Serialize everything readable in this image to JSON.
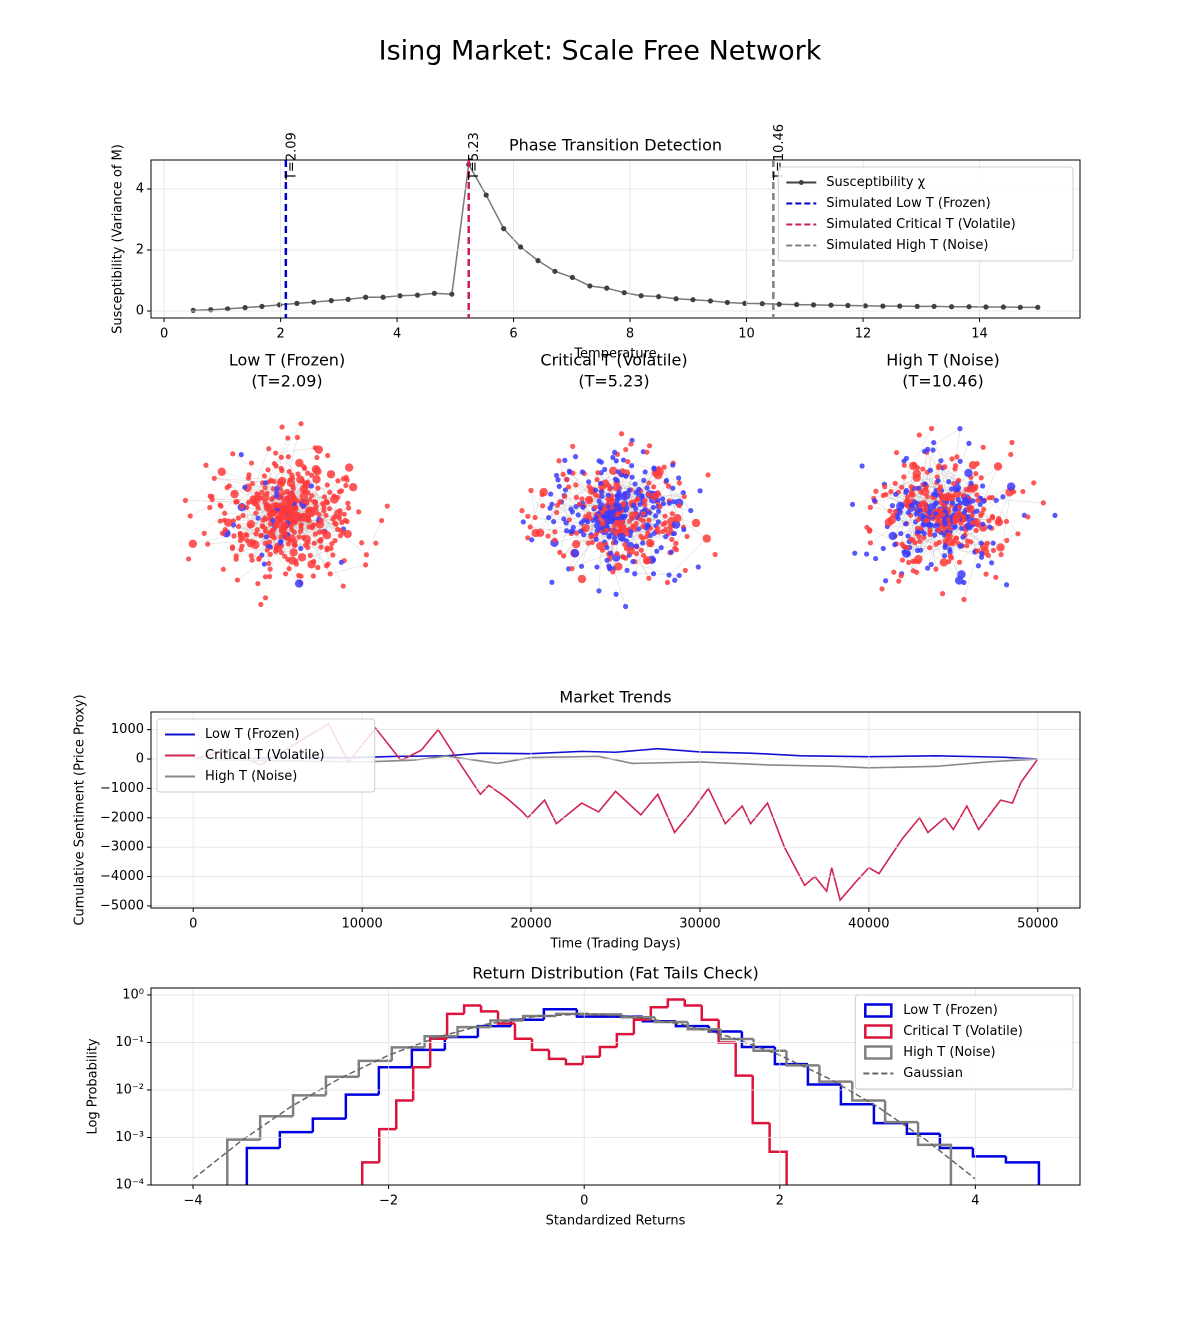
{
  "title": "Ising Market: Scale Free Network",
  "chart_data": [
    {
      "type": "line",
      "title": "Phase Transition Detection",
      "xlabel": "Temperature",
      "ylabel": "Susceptibility (Variance of M)",
      "xlim": [
        -0.225,
        15.725
      ],
      "ylim": [
        -0.23,
        4.95
      ],
      "xticks": [
        0,
        2,
        4,
        6,
        8,
        10,
        12,
        14
      ],
      "yticks": [
        0,
        2,
        4
      ],
      "grid": true,
      "legend": "upper right",
      "x": [
        0.5,
        0.8,
        1.09,
        1.39,
        1.68,
        1.98,
        2.28,
        2.57,
        2.87,
        3.16,
        3.46,
        3.76,
        4.05,
        4.35,
        4.64,
        4.94,
        5.23,
        5.53,
        5.83,
        6.12,
        6.42,
        6.71,
        7.01,
        7.31,
        7.6,
        7.9,
        8.19,
        8.49,
        8.79,
        9.08,
        9.38,
        9.67,
        9.97,
        10.27,
        10.56,
        10.86,
        11.15,
        11.45,
        11.74,
        12.04,
        12.34,
        12.63,
        12.93,
        13.22,
        13.52,
        13.82,
        14.11,
        14.41,
        14.7,
        15.0
      ],
      "series": [
        {
          "name": "Susceptibility χ",
          "color": "#404040",
          "values": [
            0.02,
            0.04,
            0.07,
            0.11,
            0.15,
            0.2,
            0.25,
            0.29,
            0.34,
            0.38,
            0.45,
            0.45,
            0.5,
            0.52,
            0.58,
            0.55,
            4.8,
            3.8,
            2.7,
            2.1,
            1.65,
            1.3,
            1.1,
            0.82,
            0.75,
            0.6,
            0.5,
            0.47,
            0.4,
            0.37,
            0.33,
            0.28,
            0.25,
            0.24,
            0.22,
            0.21,
            0.2,
            0.19,
            0.18,
            0.17,
            0.16,
            0.16,
            0.15,
            0.15,
            0.14,
            0.14,
            0.13,
            0.13,
            0.12,
            0.12
          ]
        }
      ],
      "vlines": [
        {
          "x": 2.09,
          "label": "T=2.09",
          "name": "Simulated Low T (Frozen)",
          "color": "#0000cc"
        },
        {
          "x": 5.23,
          "label": "T=5.23",
          "name": "Simulated Critical T (Volatile)",
          "color": "#cc1f4e"
        },
        {
          "x": 10.46,
          "label": "T=10.46",
          "name": "Simulated High T (Noise)",
          "color": "#808080"
        }
      ]
    },
    {
      "type": "network",
      "colors": [
        "#ff3b3b",
        "#3b3bff"
      ],
      "panels": [
        {
          "title": "Low T (Frozen)",
          "subtitle": "(T=2.09)"
        },
        {
          "title": "Critical T (Volatile)",
          "subtitle": "(T=5.23)"
        },
        {
          "title": "High T (Noise)",
          "subtitle": "(T=10.46)"
        }
      ]
    },
    {
      "type": "line",
      "title": "Market Trends",
      "xlabel": "Time (Trading Days)",
      "ylabel": "Cumulative Sentiment (Price Proxy)",
      "xlim": [
        -2500,
        52500
      ],
      "ylim": [
        -5070,
        1600
      ],
      "xticks": [
        0,
        10000,
        20000,
        30000,
        40000,
        50000
      ],
      "yticks": [
        {
          "value": -5000,
          "label": "−5000"
        },
        {
          "value": -4000,
          "label": "−4000"
        },
        {
          "value": -3000,
          "label": "−3000"
        },
        {
          "value": -2000,
          "label": "−2000"
        },
        {
          "value": -1000,
          "label": "−1000"
        },
        0,
        1000
      ],
      "grid": true,
      "legend": "upper left",
      "series": [
        {
          "name": "Low T (Frozen)",
          "color": "#1010d0",
          "x": [
            0,
            3000,
            6000,
            9000,
            12000,
            15000,
            17000,
            20000,
            23000,
            25000,
            27500,
            30000,
            33000,
            36000,
            40000,
            44000,
            48000,
            50000
          ],
          "values": [
            0,
            20,
            60,
            40,
            90,
            110,
            200,
            180,
            260,
            230,
            350,
            240,
            200,
            110,
            80,
            110,
            60,
            0
          ]
        },
        {
          "name": "Critical T (Volatile)",
          "color": "#d02550",
          "x": [
            0,
            2000,
            4000,
            6000,
            8000,
            9200,
            10800,
            12300,
            13500,
            14500,
            15500,
            17000,
            17500,
            18500,
            19500,
            19800,
            20800,
            21500,
            23000,
            24000,
            25000,
            26500,
            27500,
            28500,
            29500,
            30500,
            31500,
            32500,
            33000,
            34000,
            35000,
            36200,
            36800,
            37500,
            37800,
            38300,
            39200,
            40000,
            40600,
            42000,
            43000,
            43500,
            44500,
            45000,
            45800,
            46500,
            47800,
            48500,
            49000,
            50000
          ],
          "values": [
            0,
            300,
            -200,
            500,
            1200,
            -100,
            1050,
            -50,
            300,
            1000,
            100,
            -1200,
            -900,
            -1300,
            -1800,
            -2000,
            -1400,
            -2200,
            -1500,
            -1800,
            -1100,
            -1900,
            -1200,
            -2500,
            -1800,
            -1000,
            -2200,
            -1600,
            -2200,
            -1500,
            -3000,
            -4300,
            -4000,
            -4500,
            -3700,
            -4800,
            -4200,
            -3700,
            -3900,
            -2700,
            -2000,
            -2500,
            -2000,
            -2400,
            -1600,
            -2400,
            -1400,
            -1500,
            -800,
            0
          ]
        },
        {
          "name": "High T (Noise)",
          "color": "#888888",
          "x": [
            0,
            5000,
            10000,
            13000,
            15000,
            18000,
            20000,
            24000,
            26000,
            30000,
            34000,
            38000,
            40000,
            44000,
            47000,
            50000
          ],
          "values": [
            0,
            -60,
            -100,
            -40,
            100,
            -150,
            50,
            90,
            -150,
            -100,
            -200,
            -250,
            -300,
            -250,
            -100,
            0
          ]
        }
      ]
    },
    {
      "type": "histogram",
      "title": "Return Distribution (Fat Tails Check)",
      "xlabel": "Standardized Returns",
      "ylabel": "Log Probability",
      "xlim": [
        -4.43,
        5.07
      ],
      "ylim": [
        0.0001,
        1.4
      ],
      "ylog": true,
      "xticks": [
        {
          "value": -4,
          "label": "−4"
        },
        {
          "value": -2,
          "label": "−2"
        },
        0,
        2,
        4
      ],
      "yticks": [
        {
          "value": 0.0001,
          "label": "10⁻⁴"
        },
        {
          "value": 0.001,
          "label": "10⁻³"
        },
        {
          "value": 0.01,
          "label": "10⁻²"
        },
        {
          "value": 0.1,
          "label": "10⁻¹"
        },
        {
          "value": 1,
          "label": "10⁰"
        }
      ],
      "grid": true,
      "legend": "upper right",
      "series": [
        {
          "name": "Low T (Frozen)",
          "color": "#0000e0",
          "bins": [
            -3.45,
            -3.1125,
            -2.775,
            -2.4375,
            -2.1,
            -1.7625,
            -1.425,
            -1.0875,
            -0.75,
            -0.4125,
            -0.075,
            0.2625,
            0.6,
            0.9375,
            1.275,
            1.6125,
            1.95,
            2.2875,
            2.625,
            2.9625,
            3.3,
            3.6375,
            3.975,
            4.3125,
            4.65
          ],
          "values": [
            0.0006,
            0.0013,
            0.0025,
            0.008,
            0.03,
            0.07,
            0.13,
            0.22,
            0.3,
            0.5,
            0.35,
            0.35,
            0.28,
            0.22,
            0.17,
            0.08,
            0.035,
            0.013,
            0.005,
            0.002,
            0.0012,
            0.0006,
            0.0004,
            0.0003
          ]
        },
        {
          "name": "Critical T (Volatile)",
          "color": "#dc143c",
          "bins": [
            -2.27,
            -2.096,
            -1.922,
            -1.749,
            -1.575,
            -1.402,
            -1.228,
            -1.055,
            -0.881,
            -0.708,
            -0.534,
            -0.36,
            -0.187,
            -0.013,
            0.16,
            0.334,
            0.508,
            0.681,
            0.855,
            1.028,
            1.202,
            1.375,
            1.549,
            1.723,
            1.896,
            2.07
          ],
          "values": [
            0.0003,
            0.0015,
            0.006,
            0.03,
            0.12,
            0.4,
            0.6,
            0.45,
            0.25,
            0.12,
            0.07,
            0.045,
            0.035,
            0.05,
            0.08,
            0.15,
            0.3,
            0.55,
            0.8,
            0.6,
            0.3,
            0.1,
            0.02,
            0.002,
            0.0005
          ]
        },
        {
          "name": "High T (Noise)",
          "color": "#808080",
          "bins": [
            -3.65,
            -3.314,
            -2.977,
            -2.641,
            -2.305,
            -1.968,
            -1.632,
            -1.295,
            -0.959,
            -0.623,
            -0.286,
            0.05,
            0.386,
            0.723,
            1.059,
            1.395,
            1.732,
            2.068,
            2.405,
            2.741,
            3.077,
            3.414,
            3.75
          ],
          "values": [
            0.0009,
            0.0028,
            0.0077,
            0.019,
            0.041,
            0.079,
            0.135,
            0.21,
            0.29,
            0.36,
            0.4,
            0.39,
            0.34,
            0.27,
            0.19,
            0.118,
            0.067,
            0.033,
            0.015,
            0.006,
            0.0021,
            0.0007
          ]
        },
        {
          "name": "Gaussian",
          "color": "#666666",
          "dashed": true,
          "x": [
            -4,
            -3.5,
            -3,
            -2.5,
            -2,
            -1.5,
            -1,
            -0.5,
            0,
            0.5,
            1,
            1.5,
            2,
            2.5,
            3,
            3.5,
            4
          ],
          "values": [
            0.000134,
            0.000873,
            0.00443,
            0.0175,
            0.054,
            0.1295,
            0.242,
            0.352,
            0.399,
            0.352,
            0.242,
            0.1295,
            0.054,
            0.0175,
            0.00443,
            0.000873,
            0.000134
          ]
        }
      ]
    }
  ]
}
